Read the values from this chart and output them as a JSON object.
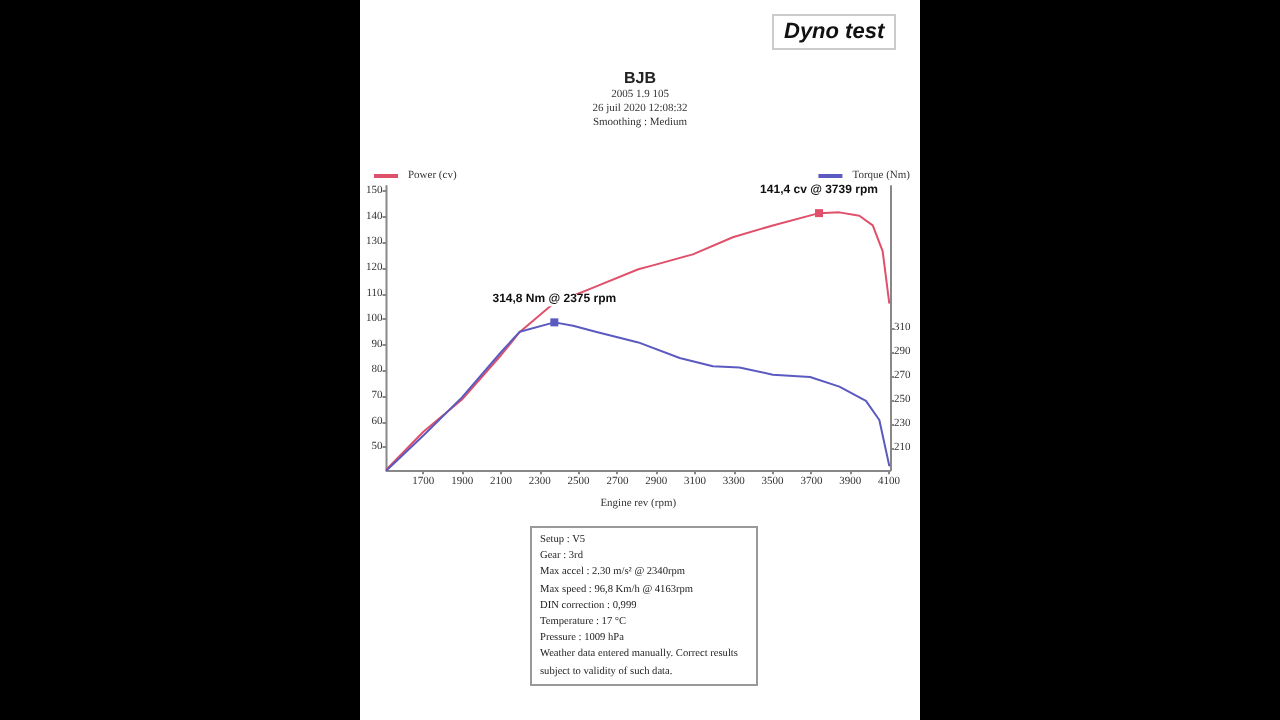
{
  "chart_data": {
    "type": "line",
    "title": "BJB",
    "subtitle": "2005 1.9 105\n26 juil 2020 12:08:32\nSmoothing : Medium",
    "xlabel": "Engine rev (rpm)",
    "annotations": [
      "Dyno test",
      "Setup : V5",
      "Gear : 3rd",
      "Max accel : 2.30 m/s² @ 2340rpm",
      "Max speed : 96,8 Km/h @ 4163rpm",
      "DIN correction : 0,999",
      "Temperature : 17 °C",
      "Pressure : 1009 hPa",
      "Weather data entered manually. Correct results subject to validity of such data."
    ],
    "x": [
      1511,
      1700,
      1899,
      2101,
      2197,
      2369,
      2588,
      2808,
      2883,
      3089,
      3295,
      3501,
      3739,
      3844,
      3947,
      4016,
      4067,
      4101
    ],
    "series": [
      {
        "name": "Power (cv)",
        "color": "#e0506a",
        "values": [
          41.4,
          56,
          68.6,
          86,
          95,
          106,
          112.7,
          119.5,
          121,
          125.3,
          132,
          136.6,
          141.4,
          141.7,
          140.4,
          136.6,
          126.6,
          106.4
        ],
        "value_labels": [
          null,
          null,
          null,
          null,
          null,
          null,
          null,
          null,
          null,
          null,
          null,
          null,
          "141,4 cv @ 3739 rpm",
          null,
          null,
          null,
          null,
          null
        ]
      },
      {
        "name": "Torque (Nm)",
        "color": "#5a5ac0",
        "axis": "y2",
        "x": [
          1511,
          1700,
          1899,
          2101,
          2197,
          2375,
          2472,
          2588,
          2808,
          3021,
          3192,
          3329,
          3501,
          3693,
          3844,
          3981,
          4050,
          4101
        ],
        "values": [
          191,
          220,
          252,
          290,
          307,
          314.8,
          312,
          307,
          298,
          285,
          278,
          277,
          271,
          269,
          261,
          249,
          233,
          195
        ],
        "value_labels": [
          null,
          null,
          null,
          null,
          null,
          "314,8 Nm @ 2375 rpm",
          null,
          null,
          null,
          null,
          null,
          null,
          null,
          null,
          null,
          null,
          null,
          null
        ]
      }
    ],
    "xlim": [
      1510,
      4105
    ],
    "xticks": [
      1700,
      1900,
      2100,
      2300,
      2500,
      2700,
      2900,
      3100,
      3300,
      3500,
      3700,
      3900,
      4100
    ],
    "ylim": [
      41,
      152
    ],
    "yticks": [
      50,
      60,
      70,
      80,
      90,
      100,
      110,
      120,
      130,
      140,
      150
    ],
    "y2lim": [
      191,
      429
    ],
    "y2ticks": [
      210,
      230,
      250,
      270,
      290,
      310
    ],
    "legend": "top",
    "grid": false,
    "line_style": "solid"
  }
}
